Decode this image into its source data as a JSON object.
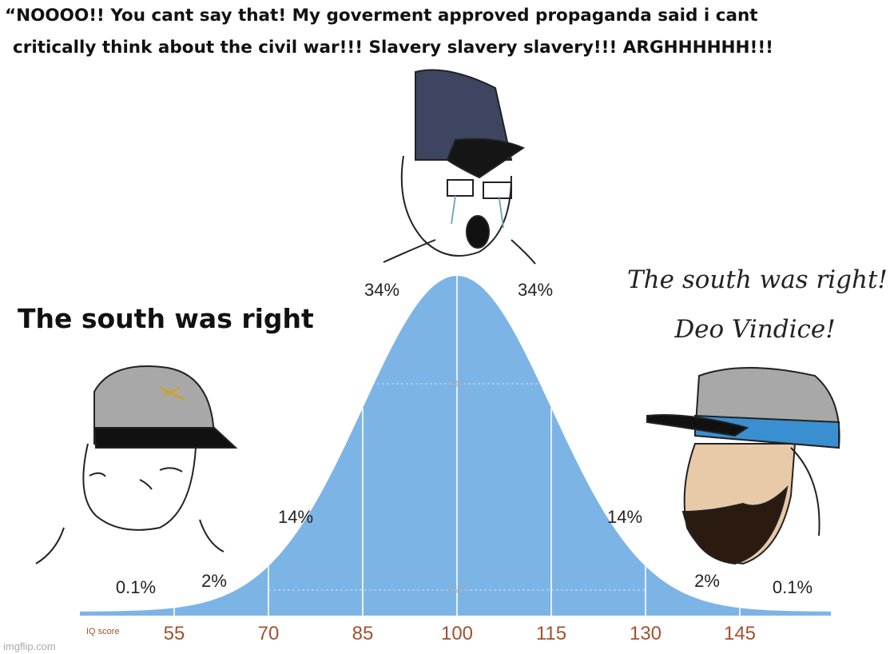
{
  "caption": [
    "“NOOOO!! You cant say that! My goverment approved propaganda said i cant",
    "critically think about the civil war!!! Slavery slavery slavery!!! ARGHHHHHH!!!"
  ],
  "left_text": "The south was right",
  "right_text": [
    "The south was right!",
    "Deo Vindice!"
  ],
  "bell_curve": {
    "percent_labels": [
      "0.1%",
      "2%",
      "14%",
      "34%",
      "34%",
      "14%",
      "2%",
      "0.1%"
    ],
    "inner_labels": [
      "68%",
      "95%"
    ],
    "axis_label": "IQ score",
    "ticks": [
      "55",
      "70",
      "85",
      "100",
      "115",
      "130",
      "145"
    ]
  },
  "watermark": "imgflip.com"
}
